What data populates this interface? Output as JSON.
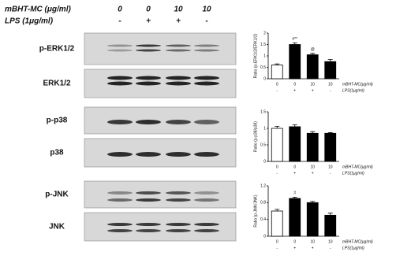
{
  "header": {
    "treatment_label": "mBHT-MC (μg/ml)",
    "treatment_doses": [
      "0",
      "0",
      "10",
      "10"
    ],
    "lps_label": "LPS (1μg/ml)",
    "lps_signs": [
      "-",
      "+",
      "+",
      "-"
    ]
  },
  "blots": [
    {
      "label": "p-ERK1/2"
    },
    {
      "label": "ERK1/2"
    },
    {
      "label": "p-p38"
    },
    {
      "label": "p38"
    },
    {
      "label": "p-JNK"
    },
    {
      "label": "JNK"
    }
  ],
  "chart_data": [
    {
      "type": "bar",
      "y_label": "Ratio (p-ERK1/2/ERK1/2)",
      "categories": [
        "0",
        "0",
        "10",
        "10"
      ],
      "lps": [
        "-",
        "+",
        "+",
        "-"
      ],
      "treatment_label": "mBHT-MC(μg/ml)",
      "lps_label": "LPS(1μg/ml)",
      "values": [
        0.6,
        1.5,
        1.05,
        0.75
      ],
      "errors": [
        0.05,
        0.07,
        0.06,
        0.1
      ],
      "annotations": [
        null,
        "#**",
        "@",
        null
      ],
      "colors": [
        "#ffffff",
        "#000000",
        "#000000",
        "#000000"
      ],
      "ylim": [
        0,
        2
      ],
      "yticks": [
        0,
        0.5,
        1,
        1.5,
        2
      ]
    },
    {
      "type": "bar",
      "y_label": "Ratio (p-p38/p38)",
      "categories": [
        "0",
        "0",
        "10",
        "10"
      ],
      "lps": [
        "-",
        "+",
        "+",
        "-"
      ],
      "treatment_label": "mBHT-MC(μg/ml)",
      "lps_label": "LPS(1μg/ml)",
      "values": [
        1.0,
        1.05,
        0.85,
        0.85
      ],
      "errors": [
        0.06,
        0.06,
        0.05,
        0.02
      ],
      "annotations": [
        null,
        null,
        null,
        null
      ],
      "colors": [
        "#ffffff",
        "#000000",
        "#000000",
        "#000000"
      ],
      "ylim": [
        0,
        1.5
      ],
      "yticks": [
        0,
        0.5,
        1,
        1.5
      ]
    },
    {
      "type": "bar",
      "y_label": "Ratio (p-JNK/JNK)",
      "categories": [
        "0",
        "0",
        "10",
        "10"
      ],
      "lps": [
        "-",
        "+",
        "+",
        "-"
      ],
      "treatment_label": "mBHT-MC(μg/ml)",
      "lps_label": "LPS(1μg/ml)",
      "values": [
        0.6,
        0.9,
        0.8,
        0.5
      ],
      "errors": [
        0.04,
        0.03,
        0.03,
        0.05
      ],
      "annotations": [
        null,
        "#",
        null,
        null
      ],
      "colors": [
        "#ffffff",
        "#000000",
        "#000000",
        "#000000"
      ],
      "ylim": [
        0,
        1.2
      ],
      "yticks": [
        0,
        0.4,
        0.8,
        1.2
      ]
    }
  ]
}
